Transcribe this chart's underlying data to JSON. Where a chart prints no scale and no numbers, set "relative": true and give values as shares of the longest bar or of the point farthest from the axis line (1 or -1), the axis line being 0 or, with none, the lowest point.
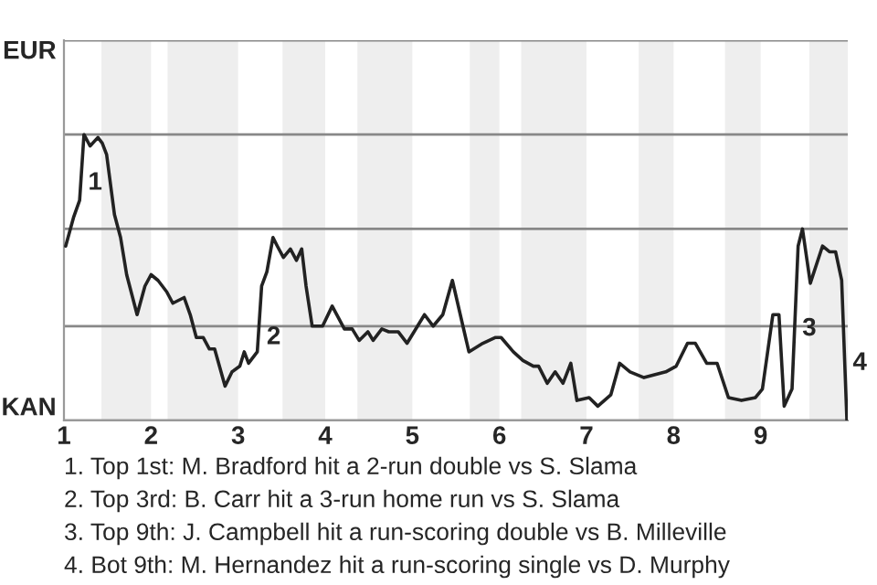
{
  "chart_data": {
    "type": "line",
    "relative": true,
    "x": [
      1.02,
      1.11,
      1.18,
      1.23,
      1.3,
      1.39,
      1.44,
      1.49,
      1.58,
      1.65,
      1.72,
      1.84,
      1.93,
      2.0,
      2.08,
      2.18,
      2.25,
      2.38,
      2.45,
      2.52,
      2.6,
      2.67,
      2.73,
      2.85,
      2.93,
      3.02,
      3.07,
      3.12,
      3.22,
      3.27,
      3.33,
      3.4,
      3.45,
      3.52,
      3.6,
      3.67,
      3.73,
      3.78,
      3.85,
      3.97,
      4.08,
      4.22,
      4.31,
      4.39,
      4.49,
      4.55,
      4.65,
      4.73,
      4.84,
      4.94,
      5.14,
      5.24,
      5.35,
      5.46,
      5.65,
      5.81,
      5.95,
      6.02,
      6.16,
      6.27,
      6.39,
      6.45,
      6.55,
      6.64,
      6.73,
      6.82,
      6.89,
      7.03,
      7.13,
      7.28,
      7.38,
      7.5,
      7.66,
      7.78,
      7.91,
      8.03,
      8.16,
      8.25,
      8.38,
      8.5,
      8.63,
      8.78,
      8.94,
      9.02,
      9.14,
      9.21,
      9.27,
      9.36,
      9.43,
      9.48,
      9.57,
      9.71,
      9.79,
      9.86,
      9.93,
      9.99
    ],
    "series": [
      {
        "color": "#222222",
        "values": [
          0.61,
          0.71,
          0.77,
          1,
          0.96,
          0.99,
          0.97,
          0.93,
          0.72,
          0.64,
          0.51,
          0.37,
          0.47,
          0.51,
          0.49,
          0.45,
          0.41,
          0.43,
          0.37,
          0.29,
          0.29,
          0.25,
          0.25,
          0.12,
          0.17,
          0.19,
          0.24,
          0.2,
          0.24,
          0.47,
          0.52,
          0.64,
          0.61,
          0.57,
          0.6,
          0.56,
          0.6,
          0.47,
          0.33,
          0.33,
          0.4,
          0.32,
          0.32,
          0.28,
          0.31,
          0.28,
          0.32,
          0.31,
          0.31,
          0.27,
          0.37,
          0.33,
          0.37,
          0.49,
          0.24,
          0.27,
          0.29,
          0.29,
          0.24,
          0.21,
          0.19,
          0.19,
          0.13,
          0.17,
          0.13,
          0.2,
          0.07,
          0.08,
          0.05,
          0.09,
          0.2,
          0.17,
          0.15,
          0.16,
          0.17,
          0.19,
          0.27,
          0.27,
          0.2,
          0.2,
          0.08,
          0.07,
          0.08,
          0.11,
          0.37,
          0.37,
          0.05,
          0.11,
          0.61,
          0.67,
          0.48,
          0.61,
          0.59,
          0.59,
          0.49,
          0
        ]
      }
    ],
    "xlim": [
      1,
      10
    ],
    "xticks": [
      1,
      2,
      3,
      4,
      5,
      6,
      7,
      8,
      9
    ],
    "ref_lines": [
      {
        "axis": "y",
        "value": 0,
        "label": "KAN",
        "color": "#999999"
      },
      {
        "axis": "y",
        "value": 0.33,
        "label": null,
        "color": "#888888"
      },
      {
        "axis": "y",
        "value": 0.67,
        "label": null,
        "color": "#888888"
      },
      {
        "axis": "y",
        "value": 1,
        "label": null,
        "color": "#888888"
      },
      {
        "axis": "y",
        "value": 1.33,
        "label": "EUR",
        "color": "#888888"
      }
    ],
    "bands": [
      {
        "axis": "x",
        "from": 1.43,
        "to": 2,
        "color": "#eeeeee"
      },
      {
        "axis": "x",
        "from": 2.19,
        "to": 3,
        "color": "#eeeeee"
      },
      {
        "axis": "x",
        "from": 3.51,
        "to": 4,
        "color": "#eeeeee"
      },
      {
        "axis": "x",
        "from": 4.37,
        "to": 5,
        "color": "#eeeeee"
      },
      {
        "axis": "x",
        "from": 5.66,
        "to": 6,
        "color": "#eeeeee"
      },
      {
        "axis": "x",
        "from": 6.25,
        "to": 7,
        "color": "#eeeeee"
      },
      {
        "axis": "x",
        "from": 7.6,
        "to": 8,
        "color": "#eeeeee"
      },
      {
        "axis": "x",
        "from": 8.59,
        "to": 9,
        "color": "#eeeeee"
      },
      {
        "axis": "x",
        "from": 9.56,
        "to": 10,
        "color": "#eeeeee"
      }
    ],
    "annotations": [
      {
        "text": "1",
        "x": 1.19,
        "y": 0.83
      },
      {
        "text": "2",
        "x": 3.24,
        "y": 0.29
      },
      {
        "text": "3",
        "x": 9.39,
        "y": 0.32
      },
      {
        "text": "4",
        "x": 9.97,
        "y": 0.2
      },
      "1. Top 1st: M. Bradford hit a 2-run double vs S. Slama",
      "2. Top 3rd: B. Carr hit a 3-run home run vs S. Slama",
      "3. Top 9th: J. Campbell hit a run-scoring double vs B. Milleville",
      "4. Bot 9th: M. Hernandez hit a run-scoring single vs D. Murphy"
    ]
  }
}
